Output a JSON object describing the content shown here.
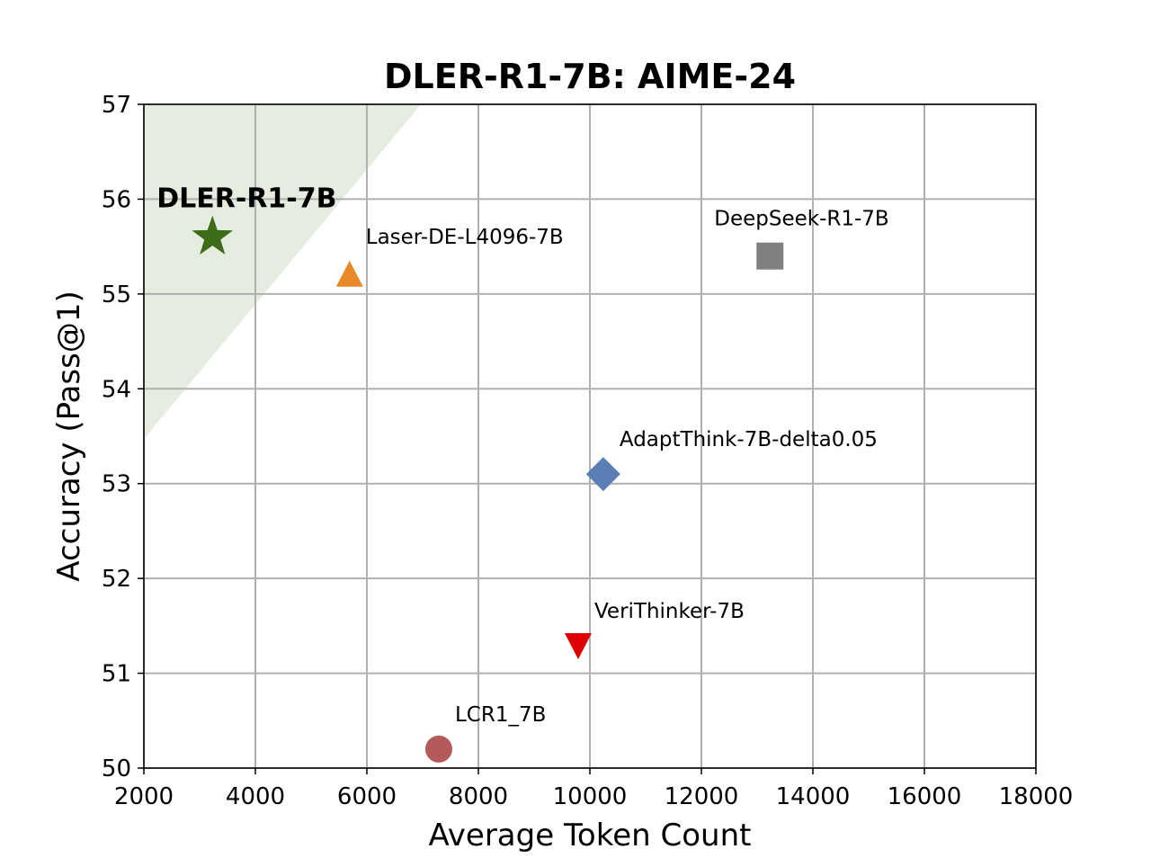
{
  "chart_data": {
    "type": "scatter",
    "title": "DLER-R1-7B: AIME-24",
    "xlabel": "Average Token Count",
    "ylabel": "Accuracy (Pass@1)",
    "xlim": [
      2000,
      18000
    ],
    "ylim": [
      50,
      57
    ],
    "xticks": [
      "2000",
      "4000",
      "6000",
      "8000",
      "10000",
      "12000",
      "14000",
      "16000",
      "18000"
    ],
    "yticks": [
      "50",
      "51",
      "52",
      "53",
      "54",
      "55",
      "56",
      "57"
    ],
    "grid": true,
    "shaded_region": {
      "color": "#e4ede0",
      "points": [
        [
          2000,
          57
        ],
        [
          6970,
          57
        ],
        [
          2000,
          53.47
        ]
      ]
    },
    "points": [
      {
        "name": "DLER-R1-7B",
        "x": 3230,
        "y": 55.6,
        "marker": "star",
        "color": "#3d6b1a",
        "bold": true
      },
      {
        "name": "Laser-DE-L4096-7B",
        "x": 5690,
        "y": 55.2,
        "marker": "triangle-up",
        "color": "#e8892a"
      },
      {
        "name": "DeepSeek-R1-7B",
        "x": 13230,
        "y": 55.4,
        "marker": "square",
        "color": "#808080"
      },
      {
        "name": "AdaptThink-7B-delta0.05",
        "x": 10240,
        "y": 53.1,
        "marker": "diamond",
        "color": "#5b7fb4"
      },
      {
        "name": "VeriThinker-7B",
        "x": 9790,
        "y": 51.3,
        "marker": "triangle-down",
        "color": "#dd0000"
      },
      {
        "name": "LCR1_7B",
        "x": 7290,
        "y": 50.2,
        "marker": "circle",
        "color": "#b55a5a"
      }
    ]
  }
}
